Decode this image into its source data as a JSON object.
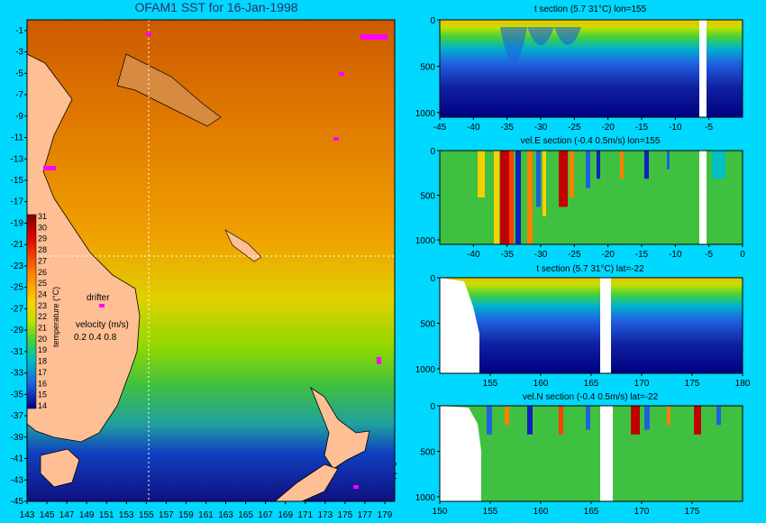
{
  "header": {
    "title": "OFAM1 SST for 16-Jan-1998"
  },
  "copyright": "© Copyright CSIRO 2005",
  "colors": {
    "background": "#00d8ff",
    "land": "#ffbf94"
  },
  "chart_data": [
    {
      "type": "heatmap",
      "title": "OFAM1 SST for 16-Jan-1998",
      "x_ticks": [
        "143",
        "145",
        "147",
        "149",
        "151",
        "153",
        "155",
        "157",
        "159",
        "161",
        "163",
        "165",
        "167",
        "169",
        "171",
        "173",
        "175",
        "177",
        "179"
      ],
      "y_ticks": [
        "-1",
        "-3",
        "-5",
        "-7",
        "-9",
        "-11",
        "-13",
        "-15",
        "-17",
        "-19",
        "-21",
        "-23",
        "-25",
        "-27",
        "-29",
        "-31",
        "-33",
        "-35",
        "-37",
        "-39",
        "-41",
        "-43",
        "-45"
      ],
      "xlim": [
        143,
        180
      ],
      "ylim": [
        -45,
        0
      ],
      "colorbar": {
        "label": "temperature (°C)",
        "ticks": [
          "31",
          "30",
          "29",
          "28",
          "27",
          "26",
          "25",
          "24",
          "23",
          "22",
          "21",
          "20",
          "19",
          "18",
          "17",
          "16",
          "15",
          "14"
        ],
        "range": [
          14,
          31
        ]
      },
      "legend": {
        "drifter": "drifter",
        "velocity_label": "velocity (m/s)",
        "velocity_values": "0.2 0.4 0.8"
      }
    },
    {
      "type": "heatmap",
      "title": "t section (5.7     31°C) lon=155",
      "x_ticks": [
        "-45",
        "-40",
        "-35",
        "-30",
        "-25",
        "-20",
        "-15",
        "-10",
        "-5"
      ],
      "y_ticks": [
        "0",
        "500",
        "1000"
      ],
      "xlim": [
        -45,
        0
      ],
      "ylim": [
        0,
        1050
      ]
    },
    {
      "type": "heatmap",
      "title": "vel.E section (-0.4     0.5m/s) lon=155",
      "x_ticks": [
        "-40",
        "-35",
        "-30",
        "-25",
        "-20",
        "-15",
        "-10",
        "-5",
        "0"
      ],
      "y_ticks": [
        "0",
        "500",
        "1000"
      ],
      "xlim": [
        -45,
        0
      ],
      "ylim": [
        0,
        1050
      ]
    },
    {
      "type": "heatmap",
      "title": "t section (5.7     31°C) lat=-22",
      "x_ticks": [
        "155",
        "160",
        "165",
        "170",
        "175",
        "180"
      ],
      "y_ticks": [
        "0",
        "500",
        "1000"
      ],
      "xlim": [
        150,
        180
      ],
      "ylim": [
        0,
        1050
      ]
    },
    {
      "type": "heatmap",
      "title": "vel.N section (-0.4     0.5m/s) lat=-22",
      "x_ticks": [
        "150",
        "155",
        "160",
        "165",
        "170",
        "175"
      ],
      "y_ticks": [
        "0",
        "500",
        "1000"
      ],
      "xlim": [
        150,
        180
      ],
      "ylim": [
        0,
        1050
      ]
    }
  ]
}
